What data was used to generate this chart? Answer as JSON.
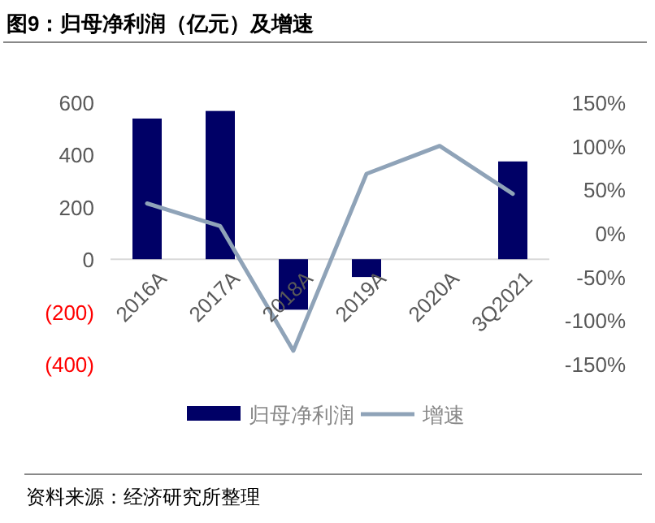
{
  "chart_data": {
    "type": "bar",
    "title": "图9：归母净利润（亿元）及增速",
    "categories": [
      "2016A",
      "2017A",
      "2018A",
      "2019A",
      "2020A",
      "3Q2021"
    ],
    "series": [
      {
        "name": "归母净利润",
        "color": "#000066",
        "values": [
          538,
          567,
          -193,
          -68,
          null,
          374
        ]
      },
      {
        "name": "增速",
        "type": "line",
        "axis": "y2",
        "color": "#8fa3b8",
        "values": [
          34,
          8,
          -135,
          68,
          100,
          45
        ]
      }
    ],
    "ylim": [
      -400,
      600
    ],
    "yticks": [
      {
        "value": -400,
        "label": "(400)"
      },
      {
        "value": -200,
        "label": "(200)"
      },
      0,
      200,
      400,
      600
    ],
    "y2lim": [
      -150,
      150
    ],
    "y2ticks": [
      {
        "value": -150,
        "label": "-150%"
      },
      {
        "value": -100,
        "label": "-100%"
      },
      {
        "value": -50,
        "label": "-50%"
      },
      {
        "value": 0,
        "label": "0%"
      },
      {
        "value": 50,
        "label": "50%"
      },
      {
        "value": 100,
        "label": "100%"
      },
      {
        "value": 150,
        "label": "150%"
      }
    ],
    "legend": "bottom",
    "grid": false,
    "marker": "none",
    "line_style": "solid",
    "annotations": [
      "资料来源：经济研究所整理"
    ]
  }
}
